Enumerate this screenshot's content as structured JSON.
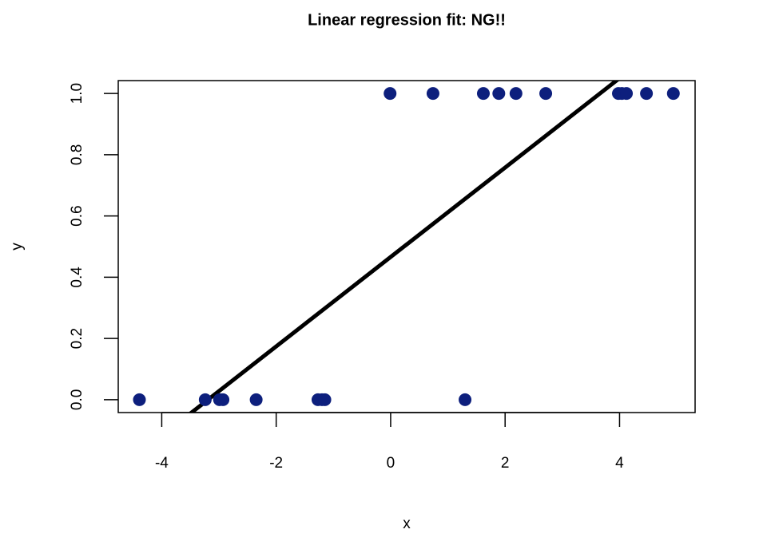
{
  "chart_data": {
    "type": "scatter",
    "title": "Linear regression fit: NG!!",
    "x_label": "x",
    "y_label": "y",
    "series": [
      {
        "color": "#0d1f7d",
        "x": [
          -4.39,
          -3.24,
          -2.99,
          -2.93,
          -2.35,
          -1.27,
          -1.2,
          -1.15,
          1.3,
          -0.01,
          0.74,
          1.62,
          1.89,
          2.19,
          2.71,
          3.98,
          4.04,
          4.12,
          4.47,
          4.94
        ],
        "values": [
          0,
          0,
          0,
          0,
          0,
          0,
          0,
          0,
          0,
          1,
          1,
          1,
          1,
          1,
          1,
          1,
          1,
          1,
          1,
          1
        ]
      }
    ],
    "fit": {
      "intercept": 0.466,
      "slope": 0.146,
      "color": "#000000"
    },
    "xlim": [
      -4.76,
      5.32
    ],
    "xticks": [
      -4,
      -2,
      0,
      2,
      4
    ],
    "ylim": [
      -0.042,
      1.042
    ],
    "yticks": [
      {
        "value": 0,
        "label": "0.0"
      },
      {
        "value": 0.2,
        "label": "0.2"
      },
      {
        "value": 0.4,
        "label": "0.4"
      },
      {
        "value": 0.6,
        "label": "0.6"
      },
      {
        "value": 0.8,
        "label": "0.8"
      },
      {
        "value": 1,
        "label": "1.0"
      }
    ]
  }
}
